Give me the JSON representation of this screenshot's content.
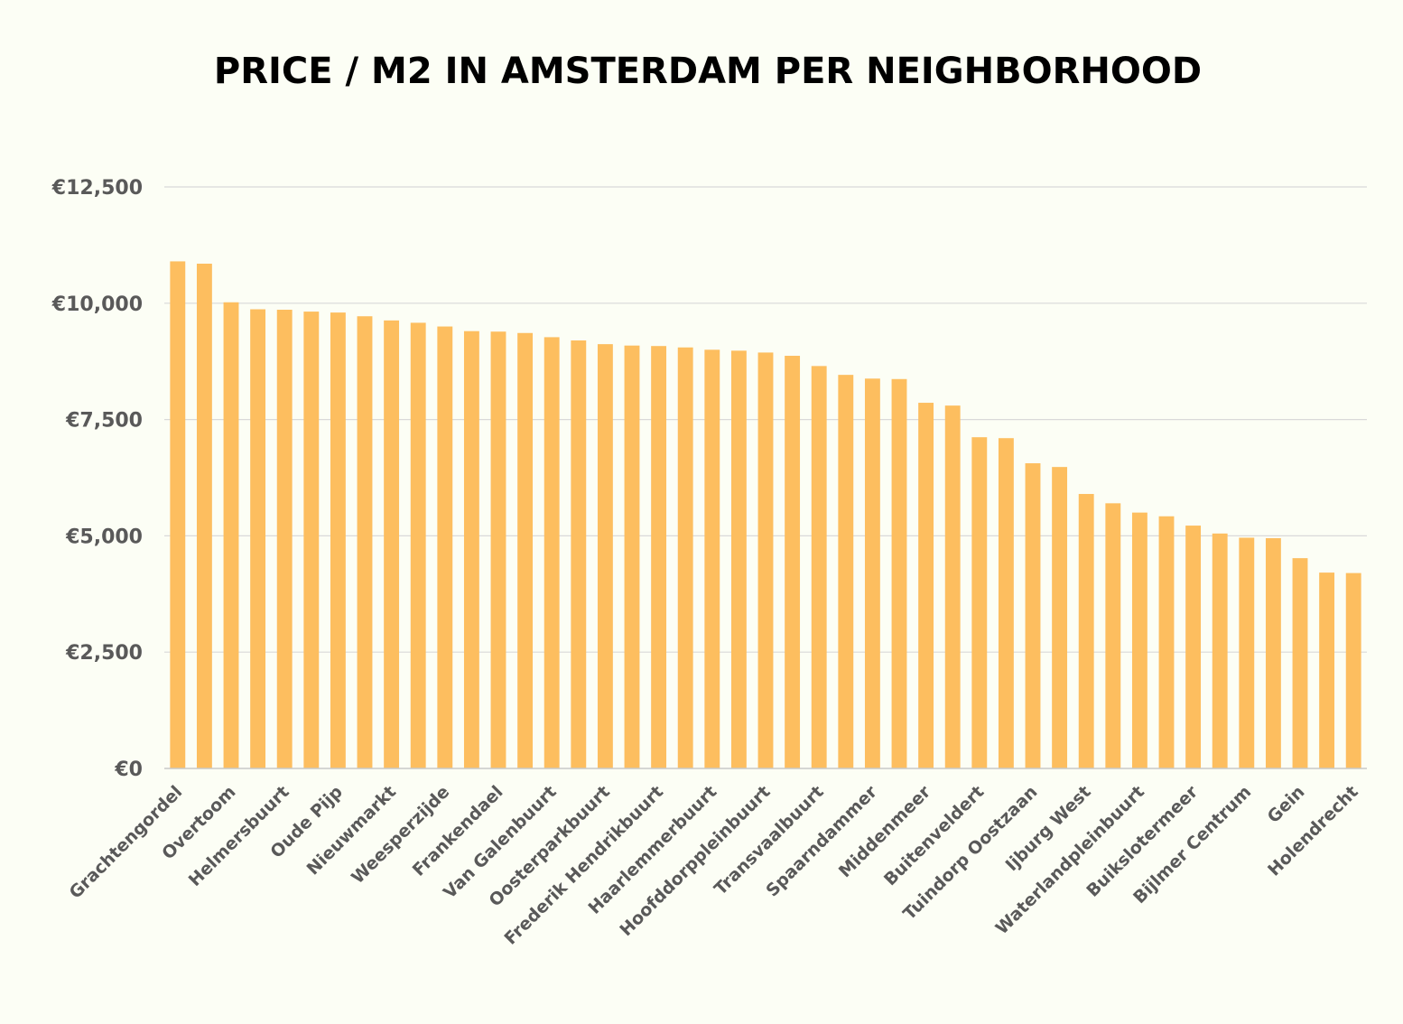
{
  "chart_data": {
    "type": "bar",
    "title": "PRICE / M2 IN AMSTERDAM PER NEIGHBORHOOD",
    "xlabel": "",
    "ylabel": "",
    "ylim": [
      0,
      12500
    ],
    "yticks": [
      0,
      2500,
      5000,
      7500,
      10000,
      12500
    ],
    "ytick_labels": [
      "€0",
      "€2,500",
      "€5,000",
      "€7,500",
      "€10,000",
      "€12,500"
    ],
    "grid": true,
    "legend": "none",
    "bar_color": "#fdbe5f",
    "categories": [
      "Grachtengordel",
      "",
      "Overtoom",
      "",
      "Helmersbuurt",
      "",
      "Oude Pijp",
      "",
      "Nieuwmarkt",
      "",
      "Weesperzijde",
      "",
      "Frankendael",
      "",
      "Van Galenbuurt",
      "",
      "Oosterparkbuurt",
      "",
      "Frederik Hendrikbuurt",
      "",
      "Haarlemmerbuurt",
      "",
      "Hoofddorppleinbuurt",
      "",
      "Transvaalbuurt",
      "",
      "Spaarndammer",
      "",
      "Middenmeer",
      "",
      "Buitenveldert",
      "",
      "Tuindorp Oostzaan",
      "",
      "Ijburg West",
      "",
      "Waterlandpleinbuurt",
      "",
      "Buikslotermeer",
      "",
      "Bijlmer Centrum",
      "",
      "Gein",
      "",
      "Holendrecht"
    ],
    "values": [
      10900,
      10850,
      10020,
      9870,
      9860,
      9820,
      9800,
      9720,
      9630,
      9580,
      9500,
      9400,
      9390,
      9360,
      9270,
      9200,
      9120,
      9090,
      9080,
      9050,
      9000,
      8980,
      8940,
      8870,
      8650,
      8460,
      8380,
      8370,
      7860,
      7800,
      7120,
      7100,
      6560,
      6480,
      5900,
      5700,
      5500,
      5420,
      5220,
      5050,
      4960,
      4950,
      4520,
      4210,
      4200
    ]
  }
}
